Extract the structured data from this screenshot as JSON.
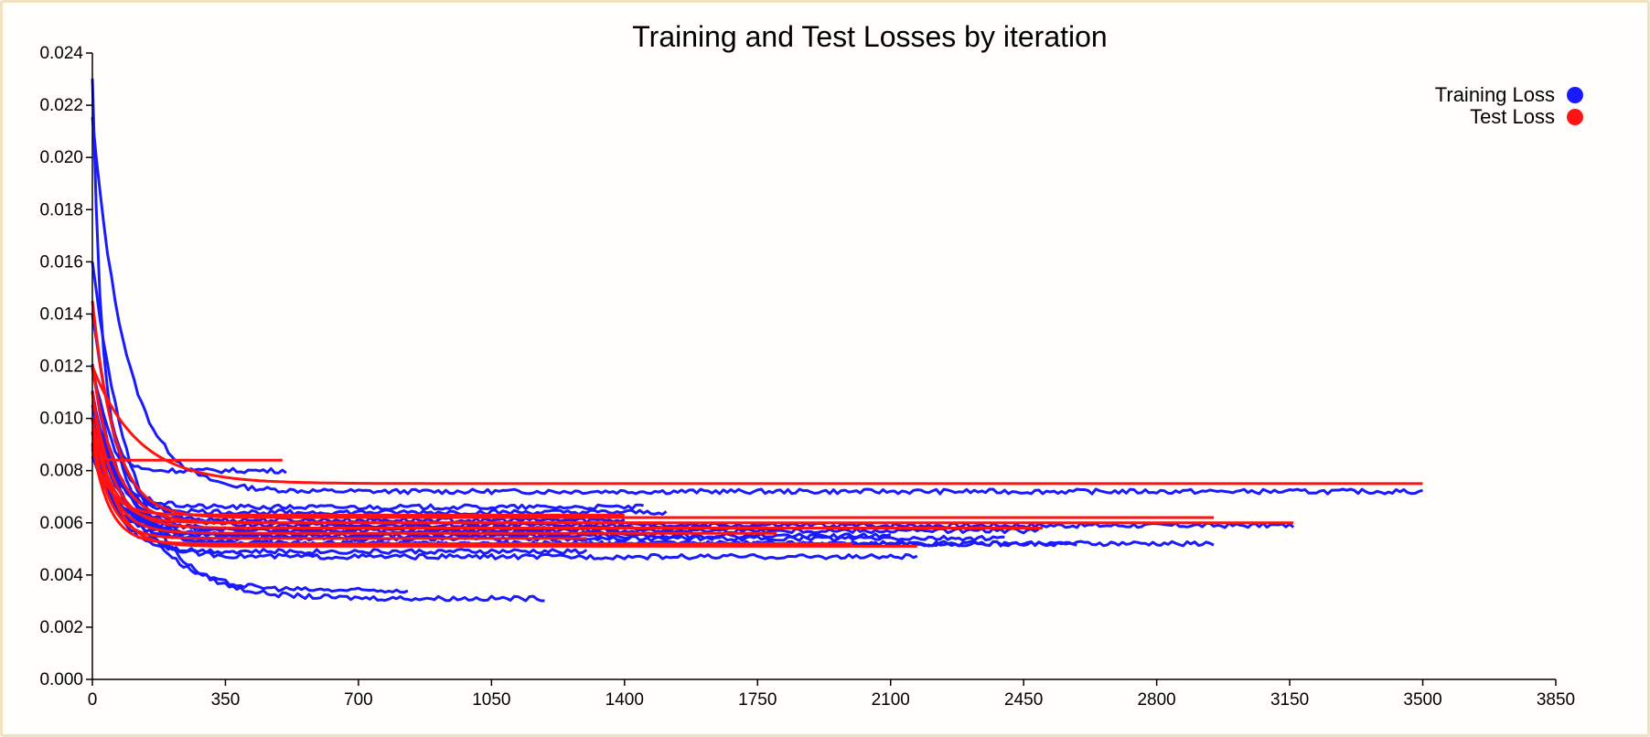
{
  "colors": {
    "training": "#1a1aff",
    "test": "#ff1212",
    "frame": "#efe4bf"
  },
  "chart_data": {
    "type": "line",
    "title": "Training and Test Losses by iteration",
    "xlabel": "",
    "ylabel": "",
    "xlim": [
      0,
      3850
    ],
    "ylim": [
      0,
      0.024
    ],
    "xticks": [
      "0",
      "350",
      "700",
      "1050",
      "1400",
      "1750",
      "2100",
      "2450",
      "2800",
      "3150",
      "3500",
      "3850"
    ],
    "yticks": [
      "0.000",
      "0.002",
      "0.004",
      "0.006",
      "0.008",
      "0.010",
      "0.012",
      "0.014",
      "0.016",
      "0.018",
      "0.020",
      "0.022",
      "0.024"
    ],
    "grid": false,
    "legend": {
      "position": "top-right",
      "entries": [
        {
          "label": "Training Loss",
          "color": "#1a1aff"
        },
        {
          "label": "Test Loss",
          "color": "#ff1212"
        }
      ]
    },
    "series": [
      {
        "kind": "train",
        "start": 0.0215,
        "end": 0.0072,
        "end_x": 3500,
        "tau": 90
      },
      {
        "kind": "train",
        "start": 0.023,
        "end": 0.008,
        "end_x": 510,
        "tau": 25
      },
      {
        "kind": "train",
        "start": 0.016,
        "end": 0.0031,
        "end_x": 1190,
        "tau": 110
      },
      {
        "kind": "train",
        "start": 0.014,
        "end": 0.0034,
        "end_x": 830,
        "tau": 100
      },
      {
        "kind": "train",
        "start": 0.012,
        "end": 0.0047,
        "end_x": 2170,
        "tau": 70
      },
      {
        "kind": "train",
        "start": 0.012,
        "end": 0.0052,
        "end_x": 2950,
        "tau": 75
      },
      {
        "kind": "train",
        "start": 0.012,
        "end": 0.0059,
        "end_x": 3160,
        "tau": 80
      },
      {
        "kind": "train",
        "start": 0.011,
        "end": 0.0052,
        "end_x": 2590,
        "tau": 70
      },
      {
        "kind": "train",
        "start": 0.011,
        "end": 0.0057,
        "end_x": 2490,
        "tau": 70
      },
      {
        "kind": "train",
        "start": 0.0105,
        "end": 0.0055,
        "end_x": 2100,
        "tau": 65
      },
      {
        "kind": "train",
        "start": 0.01,
        "end": 0.0064,
        "end_x": 1510,
        "tau": 60
      },
      {
        "kind": "train",
        "start": 0.01,
        "end": 0.0066,
        "end_x": 1450,
        "tau": 60
      },
      {
        "kind": "train",
        "start": 0.0095,
        "end": 0.0049,
        "end_x": 1300,
        "tau": 60
      },
      {
        "kind": "train",
        "start": 0.009,
        "end": 0.0058,
        "end_x": 1800,
        "tau": 55
      },
      {
        "kind": "train",
        "start": 0.009,
        "end": 0.0054,
        "end_x": 2400,
        "tau": 60
      },
      {
        "kind": "train",
        "start": 0.0085,
        "end": 0.0061,
        "end_x": 1400,
        "tau": 55
      },
      {
        "kind": "train",
        "start": 0.0088,
        "end": 0.0056,
        "end_x": 1600,
        "tau": 55
      },
      {
        "kind": "test",
        "start": 0.01,
        "end": 0.0084,
        "end_x": 505,
        "tau": 10
      },
      {
        "kind": "test",
        "start": 0.012,
        "end": 0.0075,
        "end_x": 3505,
        "tau": 120
      },
      {
        "kind": "test",
        "start": 0.0145,
        "end": 0.0062,
        "end_x": 2950,
        "tau": 60
      },
      {
        "kind": "test",
        "start": 0.012,
        "end": 0.006,
        "end_x": 3160,
        "tau": 60
      },
      {
        "kind": "test",
        "start": 0.011,
        "end": 0.0058,
        "end_x": 2500,
        "tau": 55
      },
      {
        "kind": "test",
        "start": 0.011,
        "end": 0.0051,
        "end_x": 2170,
        "tau": 50
      },
      {
        "kind": "test",
        "start": 0.01,
        "end": 0.006,
        "end_x": 1500,
        "tau": 50
      },
      {
        "kind": "test",
        "start": 0.01,
        "end": 0.0056,
        "end_x": 1800,
        "tau": 50
      },
      {
        "kind": "test",
        "start": 0.0095,
        "end": 0.0054,
        "end_x": 1300,
        "tau": 45
      },
      {
        "kind": "test",
        "start": 0.009,
        "end": 0.0052,
        "end_x": 2000,
        "tau": 45
      },
      {
        "kind": "test",
        "start": 0.009,
        "end": 0.0063,
        "end_x": 1400,
        "tau": 45
      }
    ]
  }
}
